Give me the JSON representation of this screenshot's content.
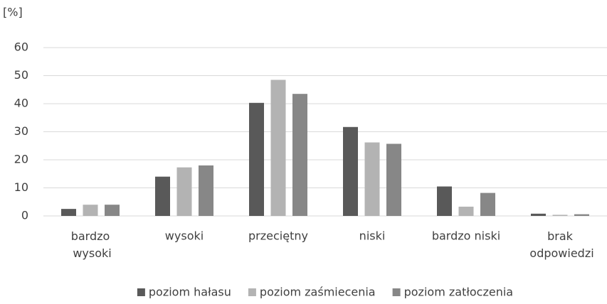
{
  "chart_data": {
    "type": "bar",
    "ylabel": "[%]",
    "categories": [
      "bardzo wysoki",
      "wysoki",
      "przeciętny",
      "niski",
      "bardzo niski",
      "brak odpowiedzi"
    ],
    "series": [
      {
        "name": "poziom hałasu",
        "color": "#595959",
        "values": [
          2.5,
          14,
          40.3,
          31.7,
          10.5,
          0.8
        ]
      },
      {
        "name": "poziom zaśmiecenia",
        "color": "#b3b3b3",
        "values": [
          4,
          17.3,
          48.5,
          26.2,
          3.3,
          0.4
        ]
      },
      {
        "name": "poziom zatłoczenia",
        "color": "#878787",
        "values": [
          4,
          18,
          43.5,
          25.7,
          8.2,
          0.6
        ]
      }
    ],
    "ylim": [
      0,
      60
    ],
    "yticks": [
      0,
      10,
      20,
      30,
      40,
      50,
      60
    ],
    "grid": true,
    "legend": "bottom"
  }
}
